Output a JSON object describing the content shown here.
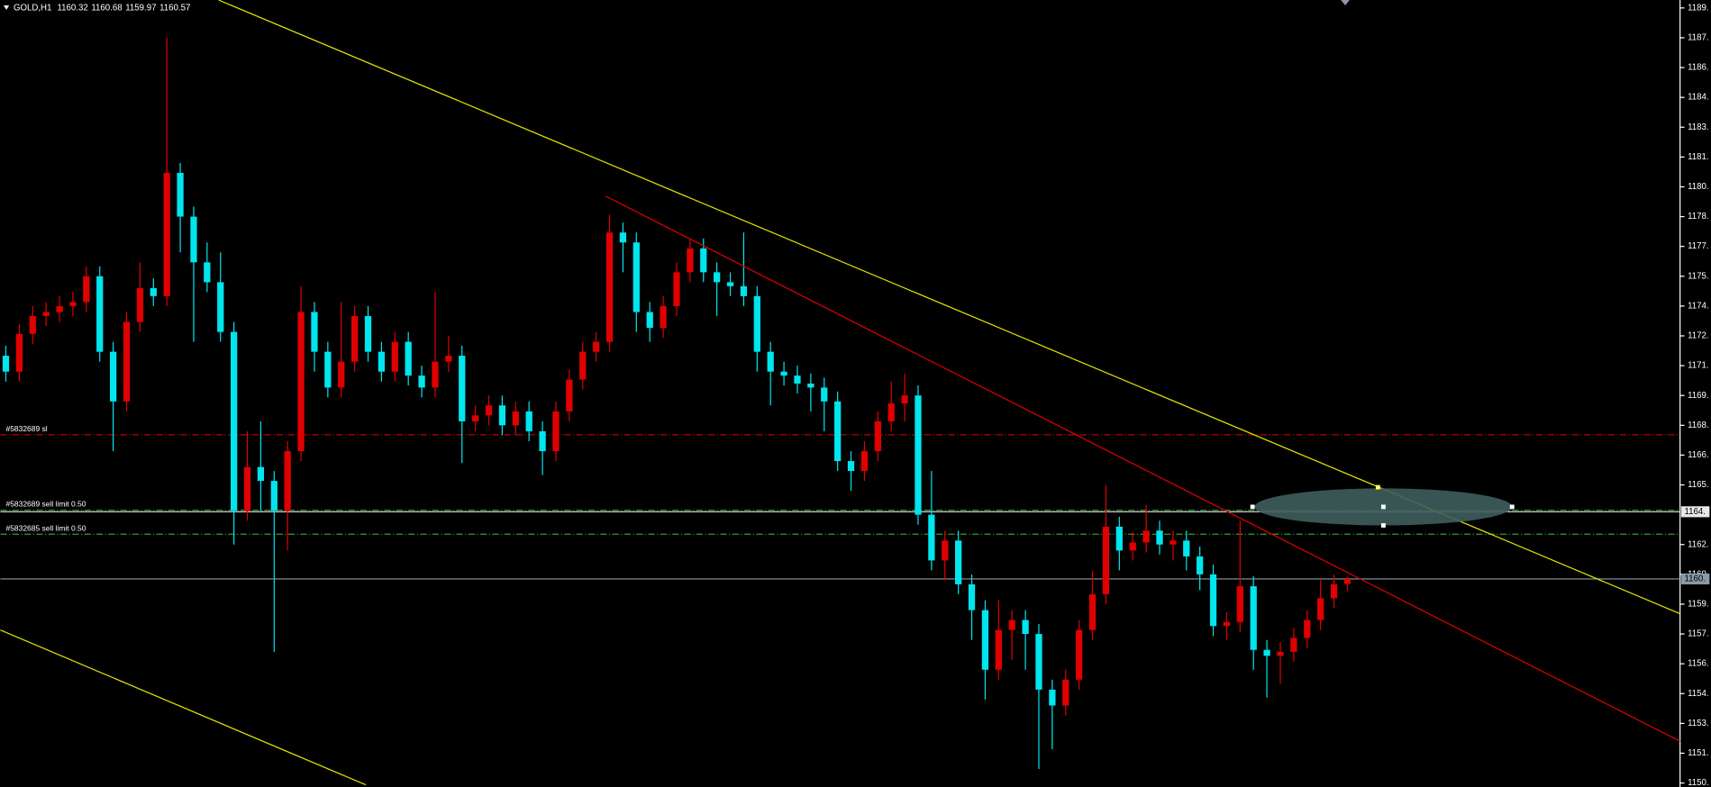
{
  "chart_data": {
    "type": "candlestick",
    "title": "GOLD,H1",
    "up_color": "#e00000",
    "down_color": "#00e5ee",
    "ylim": [
      1150.1,
      1189.7
    ],
    "yticks": [
      {
        "value": 1189.3,
        "label": "1189."
      },
      {
        "value": 1187.8,
        "label": "1187."
      },
      {
        "value": 1186.3,
        "label": "1186."
      },
      {
        "value": 1184.8,
        "label": "1184."
      },
      {
        "value": 1183.3,
        "label": "1183."
      },
      {
        "value": 1181.8,
        "label": "1181."
      },
      {
        "value": 1180.3,
        "label": "1180."
      },
      {
        "value": 1178.8,
        "label": "1178."
      },
      {
        "value": 1177.3,
        "label": "1177."
      },
      {
        "value": 1175.8,
        "label": "1175."
      },
      {
        "value": 1174.3,
        "label": "1174."
      },
      {
        "value": 1172.8,
        "label": "1172."
      },
      {
        "value": 1171.3,
        "label": "1171."
      },
      {
        "value": 1169.8,
        "label": "1169."
      },
      {
        "value": 1168.3,
        "label": "1168."
      },
      {
        "value": 1166.8,
        "label": "1166."
      },
      {
        "value": 1165.3,
        "label": "1165."
      },
      {
        "value": 1162.3,
        "label": "1162."
      },
      {
        "value": 1160.8,
        "label": "1160."
      },
      {
        "value": 1159.3,
        "label": "1159."
      },
      {
        "value": 1157.8,
        "label": "1157."
      },
      {
        "value": 1156.3,
        "label": "1156."
      },
      {
        "value": 1154.8,
        "label": "1154."
      },
      {
        "value": 1153.3,
        "label": "1153."
      },
      {
        "value": 1151.8,
        "label": "1151."
      },
      {
        "value": 1150.3,
        "label": "1150."
      }
    ],
    "levels": [
      {
        "label": "#5832689 sl",
        "value": 1167.82,
        "color": "#c00000",
        "style": "dashdot"
      },
      {
        "label": "#5832689 sell limit 0.50",
        "value": 1164.03,
        "color": "#2e9e2e",
        "style": "dashdot"
      },
      {
        "label": "#5832685 sell limit 0.50",
        "value": 1162.82,
        "color": "#2e9e2e",
        "style": "dashdot"
      },
      {
        "value": 1163.95,
        "tag": "1164.",
        "color": "#e8e8e8",
        "style": "solid"
      },
      {
        "value": 1160.57,
        "tag": "1160.",
        "color": "#8a9aa8",
        "style": "solid"
      }
    ],
    "open": [
      1171.8,
      1171.0,
      1172.9,
      1173.8,
      1174.0,
      1174.3,
      1174.5,
      1175.8,
      1172.0,
      1169.5,
      1173.5,
      1175.2,
      1174.8,
      1181.0,
      1178.8,
      1176.5,
      1175.5,
      1173.0,
      1164.0,
      1166.2,
      1165.5,
      1164.0,
      1167.0,
      1174.0,
      1172.0,
      1170.2,
      1171.5,
      1173.8,
      1172.0,
      1171.0,
      1172.5,
      1170.8,
      1170.2,
      1171.5,
      1171.8,
      1168.5,
      1168.8,
      1169.3,
      1168.3,
      1169.0,
      1168.0,
      1167.0,
      1169.0,
      1170.6,
      1172.0,
      1172.5,
      1178.0,
      1177.5,
      1174.0,
      1173.2,
      1174.3,
      1176.0,
      1177.2,
      1176.0,
      1175.5,
      1175.3,
      1174.8,
      1172.0,
      1171.0,
      1170.8,
      1170.4,
      1170.2,
      1169.5,
      1166.5,
      1166.0,
      1167.0,
      1168.5,
      1169.4,
      1169.8,
      1163.8,
      1161.5,
      1162.5,
      1160.3,
      1159.0,
      1156.0,
      1158.0,
      1158.5,
      1157.8,
      1155.0,
      1154.2,
      1155.5,
      1158.0,
      1159.8,
      1163.2,
      1162.0,
      1162.4,
      1163.0,
      1162.3,
      1162.5,
      1161.7,
      1160.8,
      1158.2,
      1158.4,
      1160.2,
      1157.0,
      1156.7,
      1156.9,
      1157.6,
      1158.5,
      1159.6,
      1160.32
    ],
    "high": [
      1172.3,
      1173.4,
      1174.3,
      1174.5,
      1174.8,
      1175.0,
      1176.3,
      1176.3,
      1172.5,
      1174.0,
      1176.5,
      1175.7,
      1187.8,
      1181.5,
      1179.3,
      1177.5,
      1177.0,
      1173.5,
      1168.0,
      1168.5,
      1166.0,
      1167.5,
      1175.3,
      1174.5,
      1172.5,
      1174.5,
      1174.3,
      1174.3,
      1172.5,
      1173.0,
      1173.0,
      1171.3,
      1175.0,
      1172.8,
      1172.3,
      1169.3,
      1169.8,
      1169.8,
      1169.5,
      1169.5,
      1168.5,
      1169.5,
      1171.1,
      1172.5,
      1173.0,
      1178.9,
      1178.5,
      1178.0,
      1174.5,
      1174.8,
      1176.5,
      1177.7,
      1177.7,
      1176.5,
      1176.0,
      1178.0,
      1175.3,
      1172.5,
      1171.5,
      1171.3,
      1170.9,
      1170.7,
      1170.0,
      1167.0,
      1167.5,
      1169.0,
      1170.5,
      1170.9,
      1170.3,
      1166.0,
      1163.0,
      1163.0,
      1160.8,
      1159.5,
      1159.5,
      1159.0,
      1159.0,
      1158.3,
      1155.5,
      1156.0,
      1158.5,
      1161.0,
      1165.3,
      1163.7,
      1162.9,
      1164.3,
      1163.5,
      1163.0,
      1163.0,
      1162.2,
      1161.3,
      1158.9,
      1163.5,
      1160.7,
      1157.5,
      1157.4,
      1158.1,
      1159.0,
      1160.5,
      1160.8,
      1160.68
    ],
    "low": [
      1170.5,
      1170.5,
      1172.4,
      1173.3,
      1173.5,
      1173.8,
      1174.0,
      1171.5,
      1167.0,
      1169.0,
      1173.0,
      1174.3,
      1174.3,
      1177.0,
      1172.5,
      1175.0,
      1172.5,
      1162.3,
      1163.5,
      1164.0,
      1156.9,
      1162.0,
      1166.5,
      1171.0,
      1169.7,
      1169.7,
      1171.0,
      1171.5,
      1170.5,
      1170.5,
      1170.3,
      1169.7,
      1169.7,
      1171.0,
      1166.4,
      1168.0,
      1168.3,
      1167.8,
      1167.8,
      1167.5,
      1165.8,
      1166.5,
      1168.5,
      1170.1,
      1171.5,
      1172.0,
      1176.0,
      1173.0,
      1172.5,
      1172.7,
      1173.8,
      1175.5,
      1175.5,
      1173.8,
      1174.8,
      1174.3,
      1171.0,
      1169.3,
      1170.3,
      1169.9,
      1169.0,
      1168.0,
      1166.0,
      1165.0,
      1165.5,
      1166.5,
      1168.0,
      1168.5,
      1163.3,
      1161.0,
      1160.5,
      1159.8,
      1157.5,
      1154.5,
      1155.5,
      1156.5,
      1156.0,
      1151.0,
      1152.0,
      1153.7,
      1155.0,
      1157.5,
      1159.3,
      1161.0,
      1161.5,
      1161.9,
      1161.8,
      1161.5,
      1161.0,
      1160.0,
      1157.7,
      1157.5,
      1157.9,
      1156.0,
      1154.6,
      1155.3,
      1156.4,
      1157.1,
      1158.0,
      1159.1,
      1159.97
    ],
    "close": [
      1171.0,
      1172.9,
      1173.8,
      1174.0,
      1174.3,
      1174.5,
      1175.8,
      1172.0,
      1169.5,
      1173.5,
      1175.2,
      1174.8,
      1181.0,
      1178.8,
      1176.5,
      1175.5,
      1173.0,
      1164.0,
      1166.2,
      1165.5,
      1164.0,
      1167.0,
      1174.0,
      1172.0,
      1170.2,
      1171.5,
      1173.8,
      1172.0,
      1171.0,
      1172.5,
      1170.8,
      1170.2,
      1171.5,
      1171.8,
      1168.5,
      1168.8,
      1169.3,
      1168.3,
      1169.0,
      1168.0,
      1167.0,
      1169.0,
      1170.6,
      1172.0,
      1172.5,
      1178.0,
      1177.5,
      1174.0,
      1173.2,
      1174.3,
      1176.0,
      1177.2,
      1176.0,
      1175.5,
      1175.3,
      1174.8,
      1172.0,
      1171.0,
      1170.8,
      1170.4,
      1170.2,
      1169.5,
      1166.5,
      1166.0,
      1167.0,
      1168.5,
      1169.4,
      1169.8,
      1163.8,
      1161.5,
      1162.5,
      1160.3,
      1159.0,
      1156.0,
      1158.0,
      1158.5,
      1157.8,
      1155.0,
      1154.2,
      1155.5,
      1158.0,
      1159.8,
      1163.2,
      1162.0,
      1162.4,
      1163.0,
      1162.3,
      1162.5,
      1161.7,
      1160.8,
      1158.2,
      1158.4,
      1160.2,
      1157.0,
      1156.7,
      1156.9,
      1157.6,
      1158.5,
      1159.6,
      1160.3,
      1160.57
    ]
  }
}
